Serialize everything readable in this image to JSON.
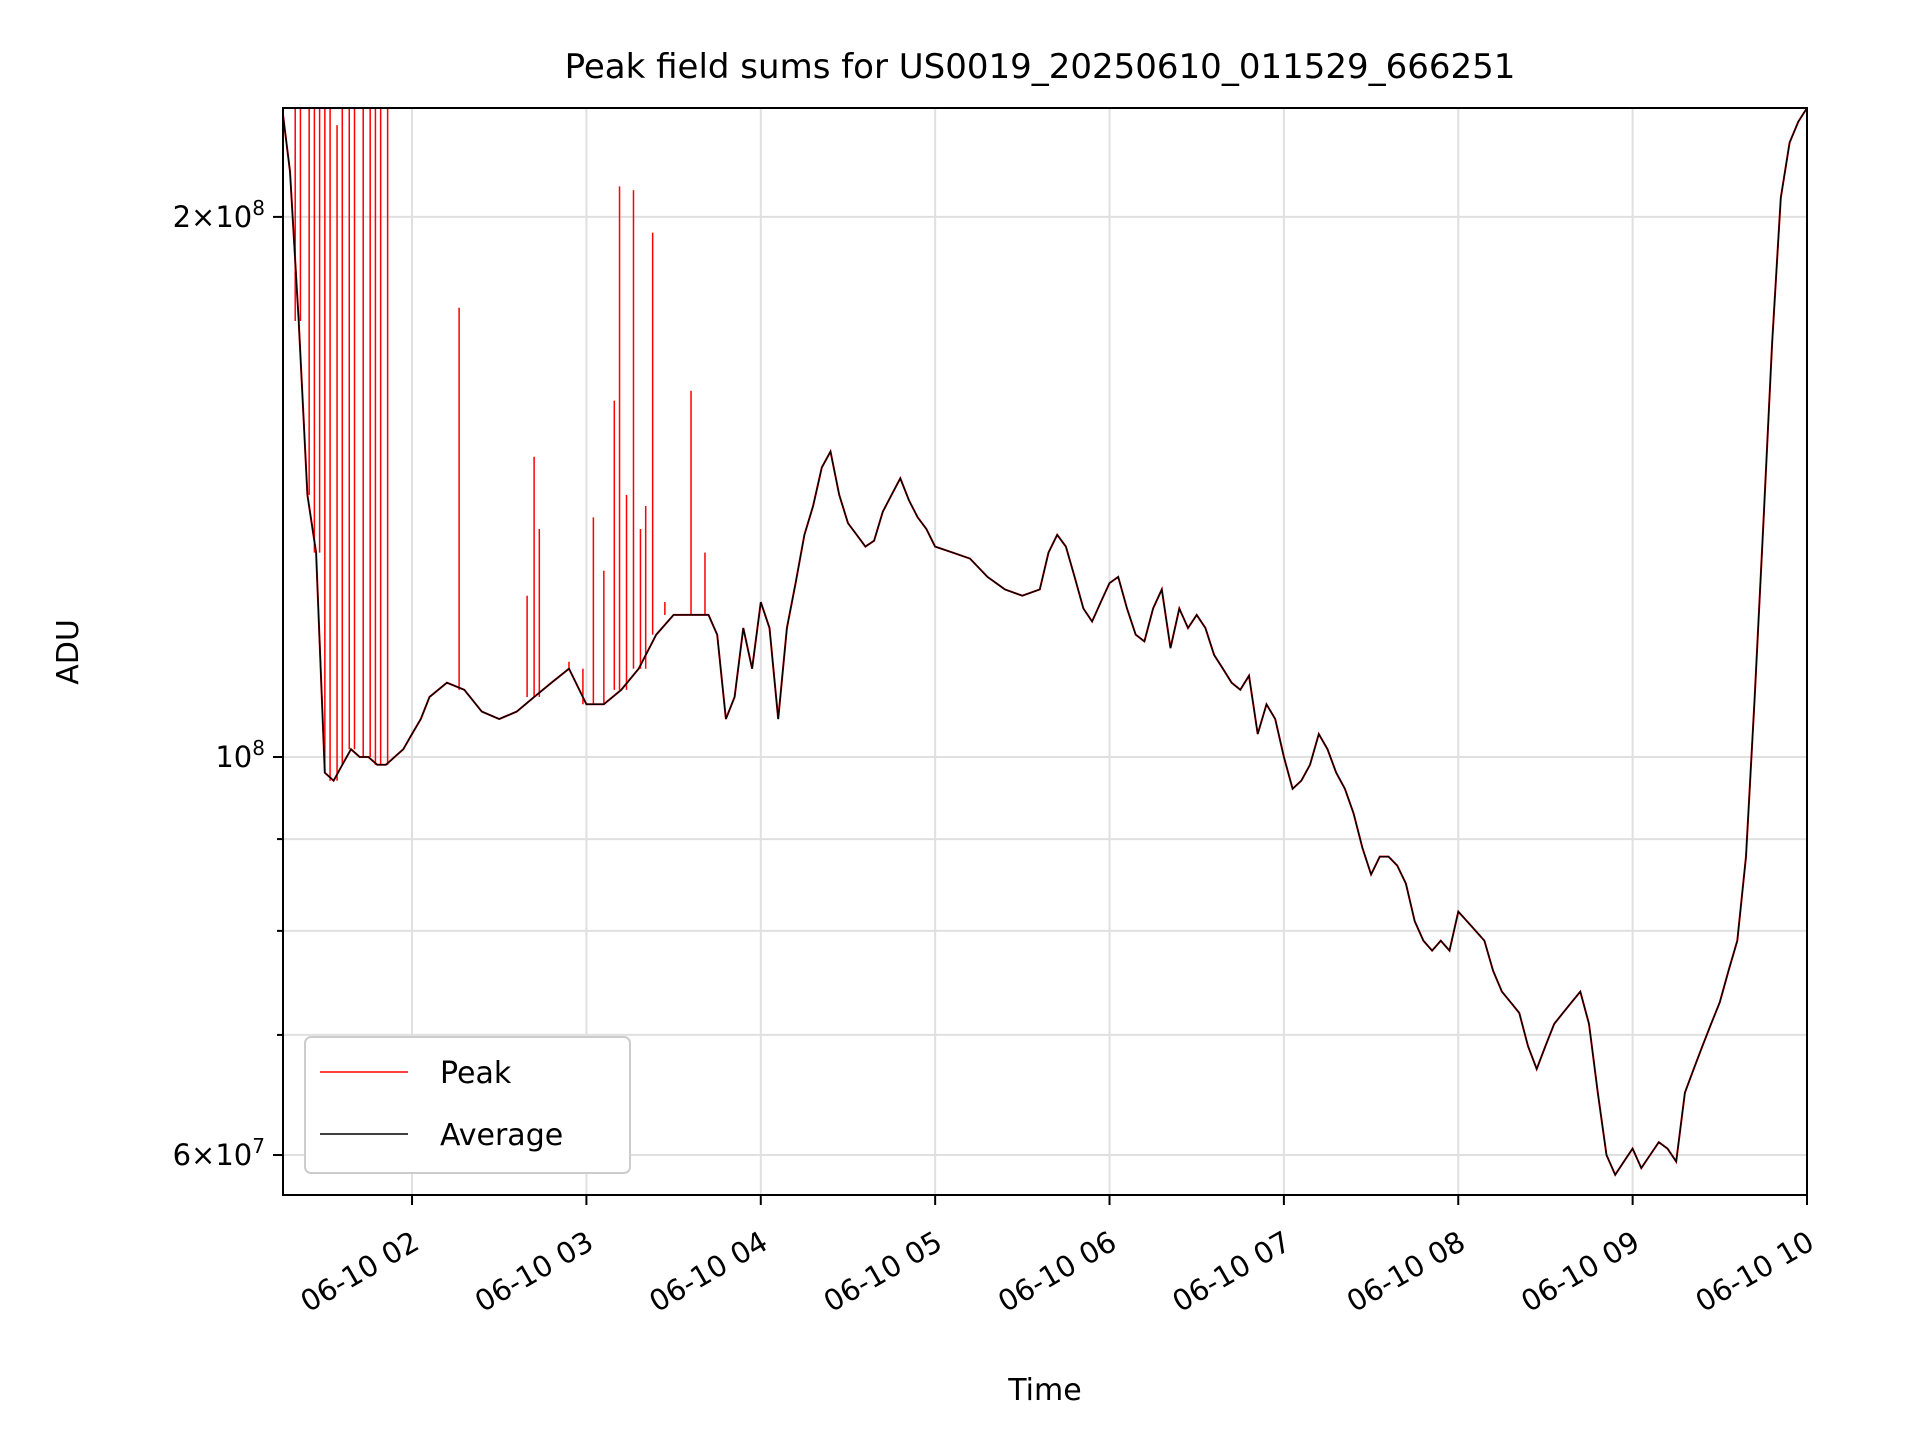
{
  "chart_data": {
    "type": "line",
    "title": "Peak field sums for US0019_20250610_011529_666251",
    "xlabel": "Time",
    "ylabel": "ADU",
    "yscale": "log",
    "xlim_hours": [
      1.26,
      10.0
    ],
    "ylim": [
      57000000,
      230000000
    ],
    "grid": true,
    "legend_position": "lower-left",
    "x_ticks": [
      {
        "label": "06-10 02",
        "hour": 2
      },
      {
        "label": "06-10 03",
        "hour": 3
      },
      {
        "label": "06-10 04",
        "hour": 4
      },
      {
        "label": "06-10 05",
        "hour": 5
      },
      {
        "label": "06-10 06",
        "hour": 6
      },
      {
        "label": "06-10 07",
        "hour": 7
      },
      {
        "label": "06-10 08",
        "hour": 8
      },
      {
        "label": "06-10 09",
        "hour": 9
      },
      {
        "label": "06-10 10",
        "hour": 10
      }
    ],
    "y_major_ticks": [
      {
        "value": 60000000,
        "mantissa": "6",
        "exponent": "7"
      },
      {
        "value": 100000000,
        "mantissa": "",
        "exponent": "8"
      },
      {
        "value": 200000000,
        "mantissa": "2",
        "exponent": "8"
      }
    ],
    "y_minor_ticks": [
      70000000,
      80000000,
      90000000
    ],
    "series": [
      {
        "name": "Peak",
        "color": "#ff0000",
        "points": [
          [
            1.26,
            228000000
          ],
          [
            1.3,
            212000000
          ],
          [
            1.35,
            175000000
          ],
          [
            1.4,
            140000000
          ],
          [
            1.45,
            130000000
          ],
          [
            1.5,
            98000000
          ],
          [
            1.55,
            97000000
          ],
          [
            1.6,
            99000000
          ],
          [
            1.65,
            101000000
          ],
          [
            1.7,
            100000000
          ],
          [
            1.75,
            100000000
          ],
          [
            1.8,
            99000000
          ],
          [
            1.85,
            99000000
          ],
          [
            1.9,
            100000000
          ],
          [
            1.95,
            101000000
          ],
          [
            2.0,
            103000000
          ],
          [
            2.05,
            105000000
          ],
          [
            2.1,
            108000000
          ],
          [
            2.2,
            110000000
          ],
          [
            2.3,
            109000000
          ],
          [
            2.4,
            106000000
          ],
          [
            2.5,
            105000000
          ],
          [
            2.6,
            106000000
          ],
          [
            2.7,
            108000000
          ],
          [
            2.8,
            110000000
          ],
          [
            2.9,
            112000000
          ],
          [
            3.0,
            107000000
          ],
          [
            3.1,
            107000000
          ],
          [
            3.2,
            109000000
          ],
          [
            3.3,
            112000000
          ],
          [
            3.4,
            117000000
          ],
          [
            3.5,
            120000000
          ],
          [
            3.6,
            120000000
          ],
          [
            3.7,
            120000000
          ],
          [
            3.75,
            117000000
          ],
          [
            3.8,
            105000000
          ],
          [
            3.85,
            108000000
          ],
          [
            3.9,
            118000000
          ],
          [
            3.95,
            112000000
          ],
          [
            4.0,
            122000000
          ],
          [
            4.05,
            118000000
          ],
          [
            4.1,
            105000000
          ],
          [
            4.15,
            118000000
          ],
          [
            4.2,
            125000000
          ],
          [
            4.25,
            133000000
          ],
          [
            4.3,
            138000000
          ],
          [
            4.35,
            145000000
          ],
          [
            4.4,
            148000000
          ],
          [
            4.45,
            140000000
          ],
          [
            4.5,
            135000000
          ],
          [
            4.55,
            133000000
          ],
          [
            4.6,
            131000000
          ],
          [
            4.65,
            132000000
          ],
          [
            4.7,
            137000000
          ],
          [
            4.75,
            140000000
          ],
          [
            4.8,
            143000000
          ],
          [
            4.85,
            139000000
          ],
          [
            4.9,
            136000000
          ],
          [
            4.95,
            134000000
          ],
          [
            5.0,
            131000000
          ],
          [
            5.1,
            130000000
          ],
          [
            5.2,
            129000000
          ],
          [
            5.3,
            126000000
          ],
          [
            5.4,
            124000000
          ],
          [
            5.5,
            123000000
          ],
          [
            5.6,
            124000000
          ],
          [
            5.65,
            130000000
          ],
          [
            5.7,
            133000000
          ],
          [
            5.75,
            131000000
          ],
          [
            5.8,
            126000000
          ],
          [
            5.85,
            121000000
          ],
          [
            5.9,
            119000000
          ],
          [
            5.95,
            122000000
          ],
          [
            6.0,
            125000000
          ],
          [
            6.05,
            126000000
          ],
          [
            6.1,
            121000000
          ],
          [
            6.15,
            117000000
          ],
          [
            6.2,
            116000000
          ],
          [
            6.25,
            121000000
          ],
          [
            6.3,
            124000000
          ],
          [
            6.35,
            115000000
          ],
          [
            6.4,
            121000000
          ],
          [
            6.45,
            118000000
          ],
          [
            6.5,
            120000000
          ],
          [
            6.55,
            118000000
          ],
          [
            6.6,
            114000000
          ],
          [
            6.65,
            112000000
          ],
          [
            6.7,
            110000000
          ],
          [
            6.75,
            109000000
          ],
          [
            6.8,
            111000000
          ],
          [
            6.85,
            103000000
          ],
          [
            6.9,
            107000000
          ],
          [
            6.95,
            105000000
          ],
          [
            7.0,
            100000000
          ],
          [
            7.05,
            96000000
          ],
          [
            7.1,
            97000000
          ],
          [
            7.15,
            99000000
          ],
          [
            7.2,
            103000000
          ],
          [
            7.25,
            101000000
          ],
          [
            7.3,
            98000000
          ],
          [
            7.35,
            96000000
          ],
          [
            7.4,
            93000000
          ],
          [
            7.45,
            89000000
          ],
          [
            7.5,
            86000000
          ],
          [
            7.55,
            88000000
          ],
          [
            7.6,
            88000000
          ],
          [
            7.65,
            87000000
          ],
          [
            7.7,
            85000000
          ],
          [
            7.75,
            81000000
          ],
          [
            7.8,
            79000000
          ],
          [
            7.85,
            78000000
          ],
          [
            7.9,
            79000000
          ],
          [
            7.95,
            78000000
          ],
          [
            8.0,
            82000000
          ],
          [
            8.05,
            81000000
          ],
          [
            8.1,
            80000000
          ],
          [
            8.15,
            79000000
          ],
          [
            8.2,
            76000000
          ],
          [
            8.25,
            74000000
          ],
          [
            8.3,
            73000000
          ],
          [
            8.35,
            72000000
          ],
          [
            8.4,
            69000000
          ],
          [
            8.45,
            67000000
          ],
          [
            8.5,
            69000000
          ],
          [
            8.55,
            71000000
          ],
          [
            8.6,
            72000000
          ],
          [
            8.65,
            73000000
          ],
          [
            8.7,
            74000000
          ],
          [
            8.75,
            71000000
          ],
          [
            8.8,
            65000000
          ],
          [
            8.85,
            60000000
          ],
          [
            8.9,
            58500000
          ],
          [
            8.95,
            59500000
          ],
          [
            9.0,
            60500000
          ],
          [
            9.05,
            59000000
          ],
          [
            9.1,
            60000000
          ],
          [
            9.15,
            61000000
          ],
          [
            9.2,
            60500000
          ],
          [
            9.25,
            59500000
          ],
          [
            9.3,
            65000000
          ],
          [
            9.35,
            67000000
          ],
          [
            9.4,
            69000000
          ],
          [
            9.45,
            71000000
          ],
          [
            9.5,
            73000000
          ],
          [
            9.55,
            76000000
          ],
          [
            9.6,
            79000000
          ],
          [
            9.65,
            88000000
          ],
          [
            9.7,
            108000000
          ],
          [
            9.75,
            135000000
          ],
          [
            9.8,
            170000000
          ],
          [
            9.85,
            205000000
          ],
          [
            9.9,
            220000000
          ],
          [
            9.95,
            226000000
          ],
          [
            10.0,
            230000000
          ]
        ],
        "spikes": [
          [
            1.33,
            230000000
          ],
          [
            1.36,
            230000000
          ],
          [
            1.41,
            230000000
          ],
          [
            1.44,
            230000000
          ],
          [
            1.47,
            230000000
          ],
          [
            1.5,
            230000000
          ],
          [
            1.53,
            230000000
          ],
          [
            1.57,
            225000000
          ],
          [
            1.6,
            230000000
          ],
          [
            1.64,
            230000000
          ],
          [
            1.67,
            230000000
          ],
          [
            1.72,
            230000000
          ],
          [
            1.76,
            230000000
          ],
          [
            1.79,
            230000000
          ],
          [
            1.82,
            230000000
          ],
          [
            1.86,
            230000000
          ],
          [
            2.27,
            178000000
          ],
          [
            2.66,
            123000000
          ],
          [
            2.7,
            147000000
          ],
          [
            2.73,
            134000000
          ],
          [
            2.85,
            112000000
          ],
          [
            2.9,
            113000000
          ],
          [
            2.98,
            112000000
          ],
          [
            3.04,
            136000000
          ],
          [
            3.1,
            127000000
          ],
          [
            3.16,
            158000000
          ],
          [
            3.19,
            208000000
          ],
          [
            3.23,
            140000000
          ],
          [
            3.27,
            207000000
          ],
          [
            3.31,
            134000000
          ],
          [
            3.34,
            138000000
          ],
          [
            3.38,
            196000000
          ],
          [
            3.45,
            122000000
          ],
          [
            3.6,
            160000000
          ],
          [
            3.68,
            130000000
          ]
        ]
      },
      {
        "name": "Average",
        "color": "#000000"
      }
    ]
  }
}
